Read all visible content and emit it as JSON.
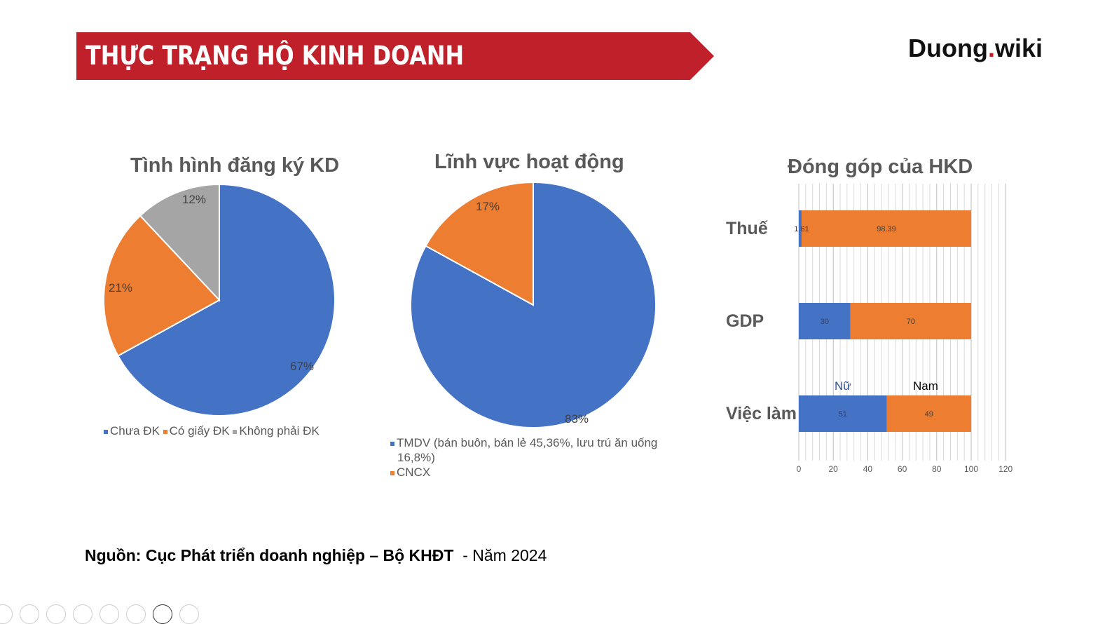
{
  "header": {
    "title": "THỰC TRẠNG HỘ KINH DOANH",
    "logo_main": "Duong",
    "logo_dot": ".",
    "logo_tld": "wiki"
  },
  "colors": {
    "banner": "#c0202a",
    "blue": "#4472c4",
    "orange": "#ed7d31",
    "gray": "#a5a5a5"
  },
  "chart_data": [
    {
      "type": "pie",
      "title": "Tình hình đăng ký KD",
      "categories": [
        "Chưa ĐK",
        "Có giấy ĐK",
        "Không phải ĐK"
      ],
      "values": [
        67,
        21,
        12
      ],
      "labels": [
        "67%",
        "21%",
        "12%"
      ],
      "legend": "bottom"
    },
    {
      "type": "pie",
      "title": "Lĩnh vực hoạt động",
      "categories": [
        "TMDV (bán buôn, bán lẻ 45,36%, lưu trú ăn uống 16,8%)",
        "CNCX"
      ],
      "legend_lines": [
        "TMDV (bán buôn, bán lẻ 45,36%, lưu trú ăn uống",
        "16,8%)",
        "CNCX"
      ],
      "values": [
        83,
        17
      ],
      "labels": [
        "83%",
        "17%"
      ],
      "legend": "bottom"
    },
    {
      "type": "bar",
      "orientation": "horizontal",
      "stacked": true,
      "title": "Đóng góp của HKD",
      "categories": [
        "Thuế",
        "GDP",
        "Việc làm"
      ],
      "series": [
        {
          "name": "Nữ",
          "values": [
            1.61,
            30,
            51
          ],
          "labels": [
            "1.61",
            "30",
            "51"
          ]
        },
        {
          "name": "Nam",
          "values": [
            98.39,
            70,
            49
          ],
          "labels": [
            "98.39",
            "70",
            "49"
          ]
        }
      ],
      "xlim": [
        0,
        120
      ],
      "xticks": [
        "0",
        "20",
        "40",
        "60",
        "80",
        "100",
        "120"
      ],
      "grid": true
    }
  ],
  "source": {
    "bold": "Nguồn: Cục Phát triển doanh nghiệp – Bộ KHĐT",
    "rest": "  - Năm 2024"
  },
  "toolbar": [
    "previous",
    "next",
    "pen",
    "grid-view",
    "zoom",
    "subtitles",
    "camera",
    "more"
  ]
}
